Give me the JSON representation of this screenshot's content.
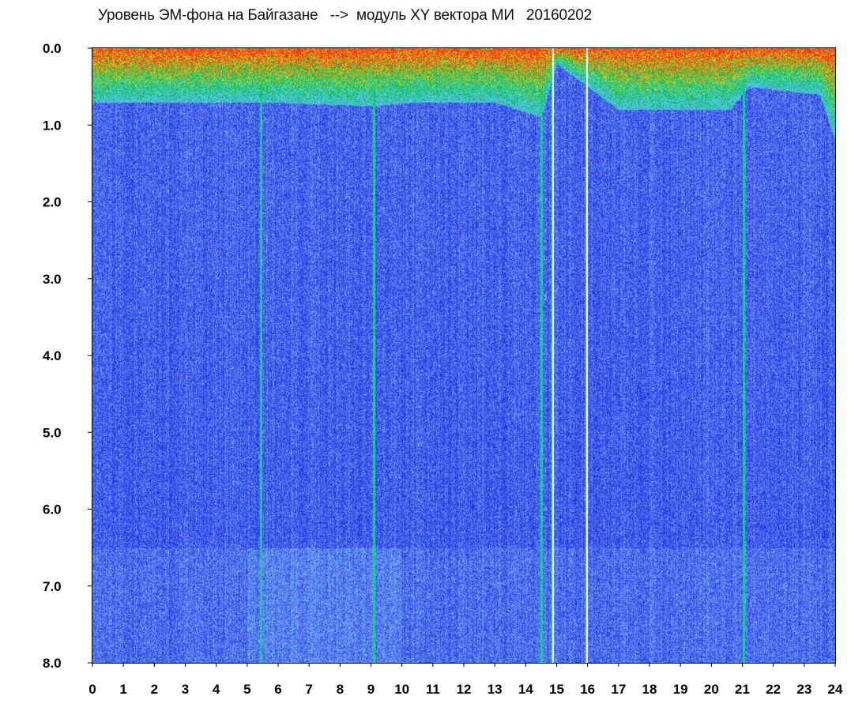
{
  "chart_data": {
    "type": "heatmap",
    "title": "Уровень ЭМ-фона на Байгазане   -->  модуль XY вектора МИ   20160202",
    "xlabel": "",
    "ylabel": "",
    "x_ticks": [
      "0",
      "1",
      "2",
      "3",
      "4",
      "5",
      "6",
      "7",
      "8",
      "9",
      "10",
      "11",
      "12",
      "13",
      "14",
      "15",
      "16",
      "17",
      "18",
      "19",
      "20",
      "21",
      "22",
      "23",
      "24"
    ],
    "y_ticks": [
      "0.0",
      "1.0",
      "2.0",
      "3.0",
      "4.0",
      "5.0",
      "6.0",
      "7.0",
      "8.0"
    ],
    "xlim": [
      0,
      24
    ],
    "ylim": [
      0,
      8
    ],
    "y_inverted": true,
    "grid": false,
    "colorscale": [
      "#1a2bd8",
      "#3b5ef0",
      "#7f9cf0",
      "#40e0e8",
      "#00b050",
      "#d8d820",
      "#ff2a10"
    ],
    "high_band_top": {
      "x": [
        0,
        5.5,
        9,
        10.5,
        13,
        14.5,
        15,
        17,
        18.5,
        20.6,
        21.2,
        23.5,
        24
      ],
      "y": [
        0.7,
        0.7,
        0.75,
        0.7,
        0.7,
        0.9,
        0.2,
        0.8,
        0.8,
        0.8,
        0.5,
        0.6,
        1.2
      ]
    },
    "notable_columns": [
      {
        "x": 5.45,
        "y_end": 8.0
      },
      {
        "x": 9.1,
        "y_end": 8.0
      },
      {
        "x": 14.5,
        "y_end": 8.0
      },
      {
        "x": 14.85,
        "y_end": 8.0
      },
      {
        "x": 15.95,
        "y_end": 8.0
      },
      {
        "x": 21.05,
        "y_end": 8.0
      }
    ]
  }
}
